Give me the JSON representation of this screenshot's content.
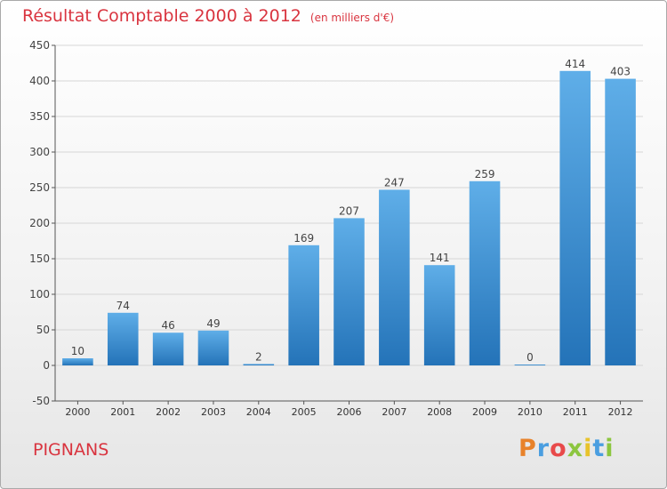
{
  "header": {
    "title": "Résultat Comptable 2000 à 2012",
    "subtitle": "(en milliers d'€)"
  },
  "footer": {
    "place": "PIGNANS"
  },
  "logo": {
    "text": "Proxiti",
    "letter_colors": [
      "#e8822a",
      "#4a9ee0",
      "#e84a4a",
      "#8cc63f",
      "#e8c32a",
      "#4a9ee0",
      "#8cc63f"
    ]
  },
  "colors": {
    "bar_top": "#5faee8",
    "bar_bottom": "#2473b8",
    "grid": "#d6d6d6",
    "axis": "#555555",
    "title": "#d9343f"
  },
  "chart_data": {
    "type": "bar",
    "categories": [
      "2000",
      "2001",
      "2002",
      "2003",
      "2004",
      "2005",
      "2006",
      "2007",
      "2008",
      "2009",
      "2010",
      "2011",
      "2012"
    ],
    "values": [
      10,
      74,
      46,
      49,
      2,
      169,
      207,
      247,
      141,
      259,
      0,
      414,
      403
    ],
    "data_labels": [
      "10",
      "74",
      "46",
      "49",
      "2",
      "169",
      "207",
      "247",
      "141",
      "259",
      "0",
      "414",
      "403"
    ],
    "title": "Résultat Comptable 2000 à 2012",
    "ylim": [
      -50,
      450
    ],
    "yticks": [
      -50,
      0,
      50,
      100,
      150,
      200,
      250,
      300,
      350,
      400,
      450
    ],
    "grid": true,
    "legend": "none"
  }
}
